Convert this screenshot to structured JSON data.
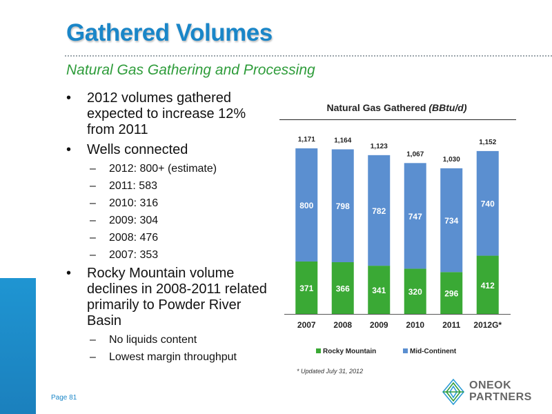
{
  "header": {
    "title": "Gathered Volumes",
    "subtitle": "Natural Gas Gathering and Processing"
  },
  "bullets": [
    {
      "text": "2012 volumes gathered expected to increase 12% from 2011",
      "sub": []
    },
    {
      "text": "Wells connected",
      "sub": [
        "2012: 800+ (estimate)",
        "2011: 583",
        "2010: 316",
        "2009: 304",
        "2008: 476",
        "2007: 353"
      ]
    },
    {
      "text": "Rocky Mountain volume declines in 2008-2011 related primarily to Powder River Basin",
      "sub": [
        "No liquids content",
        "Lowest margin throughput"
      ]
    }
  ],
  "bullet_symbol": "•",
  "dash_symbol": "–",
  "chart_data": {
    "type": "bar",
    "stacked": true,
    "title": "Natural Gas Gathered",
    "title_unit": "(BBtu/d)",
    "categories": [
      "2007",
      "2008",
      "2009",
      "2010",
      "2011",
      "2012G*"
    ],
    "series": [
      {
        "name": "Rocky Mountain",
        "color": "#3aa935",
        "values": [
          371,
          366,
          341,
          320,
          296,
          412
        ]
      },
      {
        "name": "Mid-Continent",
        "color": "#5b8fd0",
        "values": [
          800,
          798,
          782,
          747,
          734,
          740
        ]
      }
    ],
    "totals": [
      "1,171",
      "1,164",
      "1,123",
      "1,067",
      "1,030",
      "1,152"
    ],
    "ylim": [
      0,
      1171
    ],
    "legend_position": "bottom"
  },
  "footnote": "* Updated July 31, 2012",
  "page": "Page 81",
  "logo": {
    "line1": "ONEOK",
    "line2": "PARTNERS"
  },
  "colors": {
    "title": "#1a86c8",
    "subtitle": "#2e9c3a",
    "accent": "#1f95d2"
  }
}
